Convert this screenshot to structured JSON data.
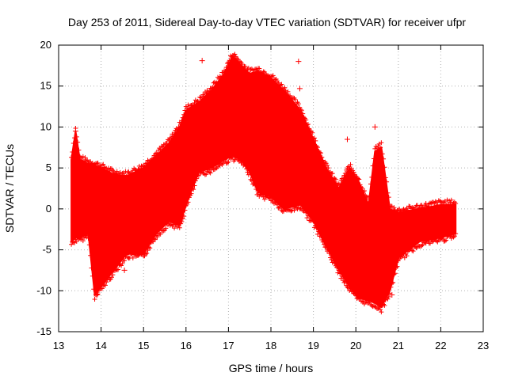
{
  "chart_data": {
    "type": "scatter",
    "title": "Day 253 of 2011, Sidereal Day-to-day VTEC variation (SDTVAR) for receiver ufpr",
    "xlabel": "GPS time / hours",
    "ylabel": "SDTVAR / TECUs",
    "xlim": [
      13,
      23
    ],
    "ylim": [
      -15,
      20
    ],
    "xticks": [
      13,
      14,
      15,
      16,
      17,
      18,
      19,
      20,
      21,
      22,
      23
    ],
    "yticks": [
      -15,
      -10,
      -5,
      0,
      5,
      10,
      15,
      20
    ],
    "grid": true,
    "series_color": "#ff0000",
    "marker": "+",
    "series": [
      {
        "name": "SDTVAR",
        "envelope": [
          {
            "x": 13.3,
            "low": -4.0,
            "high": 6.0
          },
          {
            "x": 13.4,
            "low": -3.5,
            "high": 9.5
          },
          {
            "x": 13.5,
            "low": -3.5,
            "high": 6.0
          },
          {
            "x": 13.7,
            "low": -3.0,
            "high": 5.5
          },
          {
            "x": 13.85,
            "low": -10.5,
            "high": 5.3
          },
          {
            "x": 14.0,
            "low": -9.5,
            "high": 5.0
          },
          {
            "x": 14.3,
            "low": -7.5,
            "high": 4.2
          },
          {
            "x": 14.6,
            "low": -5.5,
            "high": 4.0
          },
          {
            "x": 15.0,
            "low": -5.5,
            "high": 5.0
          },
          {
            "x": 15.3,
            "low": -3.0,
            "high": 6.5
          },
          {
            "x": 15.6,
            "low": -1.5,
            "high": 8.0
          },
          {
            "x": 15.85,
            "low": -2.0,
            "high": 10.0
          },
          {
            "x": 16.0,
            "low": 0.5,
            "high": 12.0
          },
          {
            "x": 16.3,
            "low": 4.5,
            "high": 13.0
          },
          {
            "x": 16.6,
            "low": 5.0,
            "high": 14.5
          },
          {
            "x": 16.9,
            "low": 6.0,
            "high": 16.5
          },
          {
            "x": 17.1,
            "low": 6.5,
            "high": 18.7
          },
          {
            "x": 17.3,
            "low": 6.0,
            "high": 17.5
          },
          {
            "x": 17.5,
            "low": 4.5,
            "high": 16.5
          },
          {
            "x": 17.7,
            "low": 2.0,
            "high": 16.8
          },
          {
            "x": 18.0,
            "low": 1.5,
            "high": 16.0
          },
          {
            "x": 18.3,
            "low": 0.0,
            "high": 14.5
          },
          {
            "x": 18.7,
            "low": 0.5,
            "high": 12.0
          },
          {
            "x": 19.0,
            "low": -1.5,
            "high": 8.5
          },
          {
            "x": 19.3,
            "low": -4.5,
            "high": 5.0
          },
          {
            "x": 19.6,
            "low": -7.5,
            "high": 2.5
          },
          {
            "x": 19.85,
            "low": -9.5,
            "high": 5.0
          },
          {
            "x": 20.05,
            "low": -10.8,
            "high": 3.5
          },
          {
            "x": 20.3,
            "low": -11.2,
            "high": 0.5
          },
          {
            "x": 20.45,
            "low": -11.5,
            "high": 7.0
          },
          {
            "x": 20.6,
            "low": -12.0,
            "high": 7.5
          },
          {
            "x": 20.8,
            "low": -10.0,
            "high": 0.0
          },
          {
            "x": 21.0,
            "low": -6.0,
            "high": -0.5
          },
          {
            "x": 21.5,
            "low": -4.0,
            "high": 0.0
          },
          {
            "x": 22.0,
            "low": -3.5,
            "high": 0.5
          },
          {
            "x": 22.35,
            "low": -3.0,
            "high": 0.5
          }
        ],
        "outliers": [
          {
            "x": 16.38,
            "y": 18.1
          },
          {
            "x": 18.65,
            "y": 18.0
          },
          {
            "x": 18.68,
            "y": 14.7
          },
          {
            "x": 13.9,
            "y": -10.5
          },
          {
            "x": 14.55,
            "y": -7.5
          },
          {
            "x": 20.55,
            "y": -12.0
          },
          {
            "x": 20.85,
            "y": -10.5
          },
          {
            "x": 20.45,
            "y": 10.0
          },
          {
            "x": 19.8,
            "y": 8.5
          },
          {
            "x": 13.4,
            "y": 9.5
          }
        ]
      }
    ]
  }
}
